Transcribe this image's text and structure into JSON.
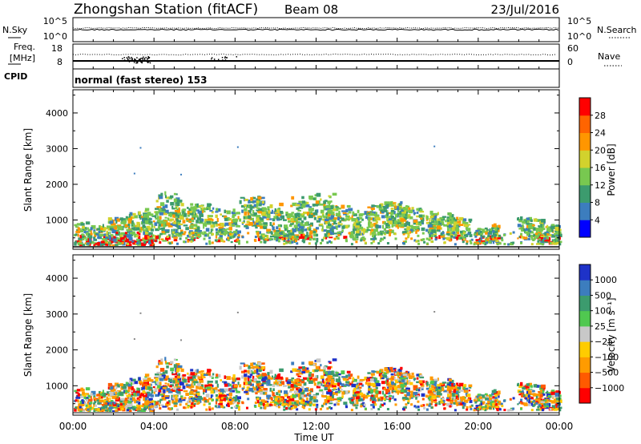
{
  "header": {
    "station": "Zhongshan Station (fitACF)",
    "beam": "Beam 08",
    "date": "23/Jul/2016"
  },
  "nsky_panel": {
    "left_label": "N.Sky",
    "right_label": "N.Search",
    "left_ticks": [
      "10^5",
      "10^0"
    ],
    "right_ticks": [
      "10^5",
      "10^0"
    ]
  },
  "freq_panel": {
    "left_label_1": "Freq.",
    "left_label_2": "[MHz]",
    "right_label": "Nave",
    "left_ticks": [
      "18",
      "8"
    ],
    "right_ticks": [
      "60",
      "0"
    ]
  },
  "cpid_panel": {
    "label": "CPID",
    "text": "normal (fast stereo) 153"
  },
  "colors": {
    "power_scale": [
      "#0000ff",
      "#3c7dbe",
      "#3c9b6e",
      "#78c850",
      "#d2d22d",
      "#ff9600",
      "#ff6400",
      "#ff0000"
    ],
    "velocity_scale": [
      "#ff0000",
      "#ff5a00",
      "#ff9b00",
      "#ffcc00",
      "#c8c8c8",
      "#50c850",
      "#3c9b6e",
      "#3c7dbe",
      "#1e32c8"
    ]
  },
  "chart_data": [
    {
      "type": "heatmap",
      "title": "",
      "ylabel": "Slant Range [km]",
      "xlabel": "",
      "ylim": [
        180,
        4650
      ],
      "yticks": [
        "1000",
        "2000",
        "3000",
        "4000"
      ],
      "colorbar_label": "Power [dB]",
      "colorbar_ticks": [
        "4",
        "8",
        "12",
        "16",
        "20",
        "24",
        "28"
      ],
      "colorbar_range": [
        0,
        32
      ]
    },
    {
      "type": "heatmap",
      "title": "",
      "ylabel": "Slant Range [km]",
      "xlabel": "Time UT",
      "ylim": [
        180,
        4650
      ],
      "xlim": [
        "00:00",
        "24:00"
      ],
      "xticks": [
        "00:00",
        "04:00",
        "08:00",
        "12:00",
        "16:00",
        "20:00",
        "00:00"
      ],
      "yticks": [
        "1000",
        "2000",
        "3000",
        "4000"
      ],
      "colorbar_label": "Velocity [m s⁻¹]",
      "colorbar_ticks": [
        "1000",
        "500",
        "100",
        "25",
        "−25",
        "−100",
        "−500",
        "−1000"
      ]
    }
  ]
}
